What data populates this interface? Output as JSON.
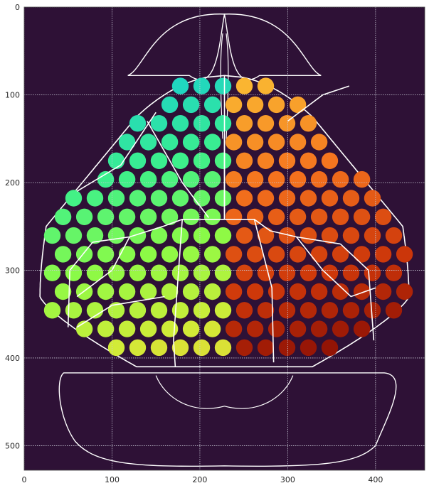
{
  "chart_data": {
    "type": "heatmap",
    "title": "",
    "xlabel": "",
    "ylabel": "",
    "xlim": [
      0,
      456
    ],
    "ylim": [
      528,
      0
    ],
    "x_ticks": [
      0,
      100,
      200,
      300,
      400
    ],
    "y_ticks": [
      0,
      100,
      200,
      300,
      400,
      500
    ],
    "grid": true,
    "colormap": "turbo",
    "colors": {
      "background": "#2e1136",
      "outline": "#ffffff",
      "grid": "#c9c9d6"
    },
    "spot_grid": {
      "x_start": 32,
      "x_end": 440,
      "x_step": 24.3,
      "y_start": 90,
      "y_end": 408,
      "row_step": 21.3,
      "row_offset": 12.2,
      "midline_x": 228,
      "spot_radius": 9.5
    }
  }
}
